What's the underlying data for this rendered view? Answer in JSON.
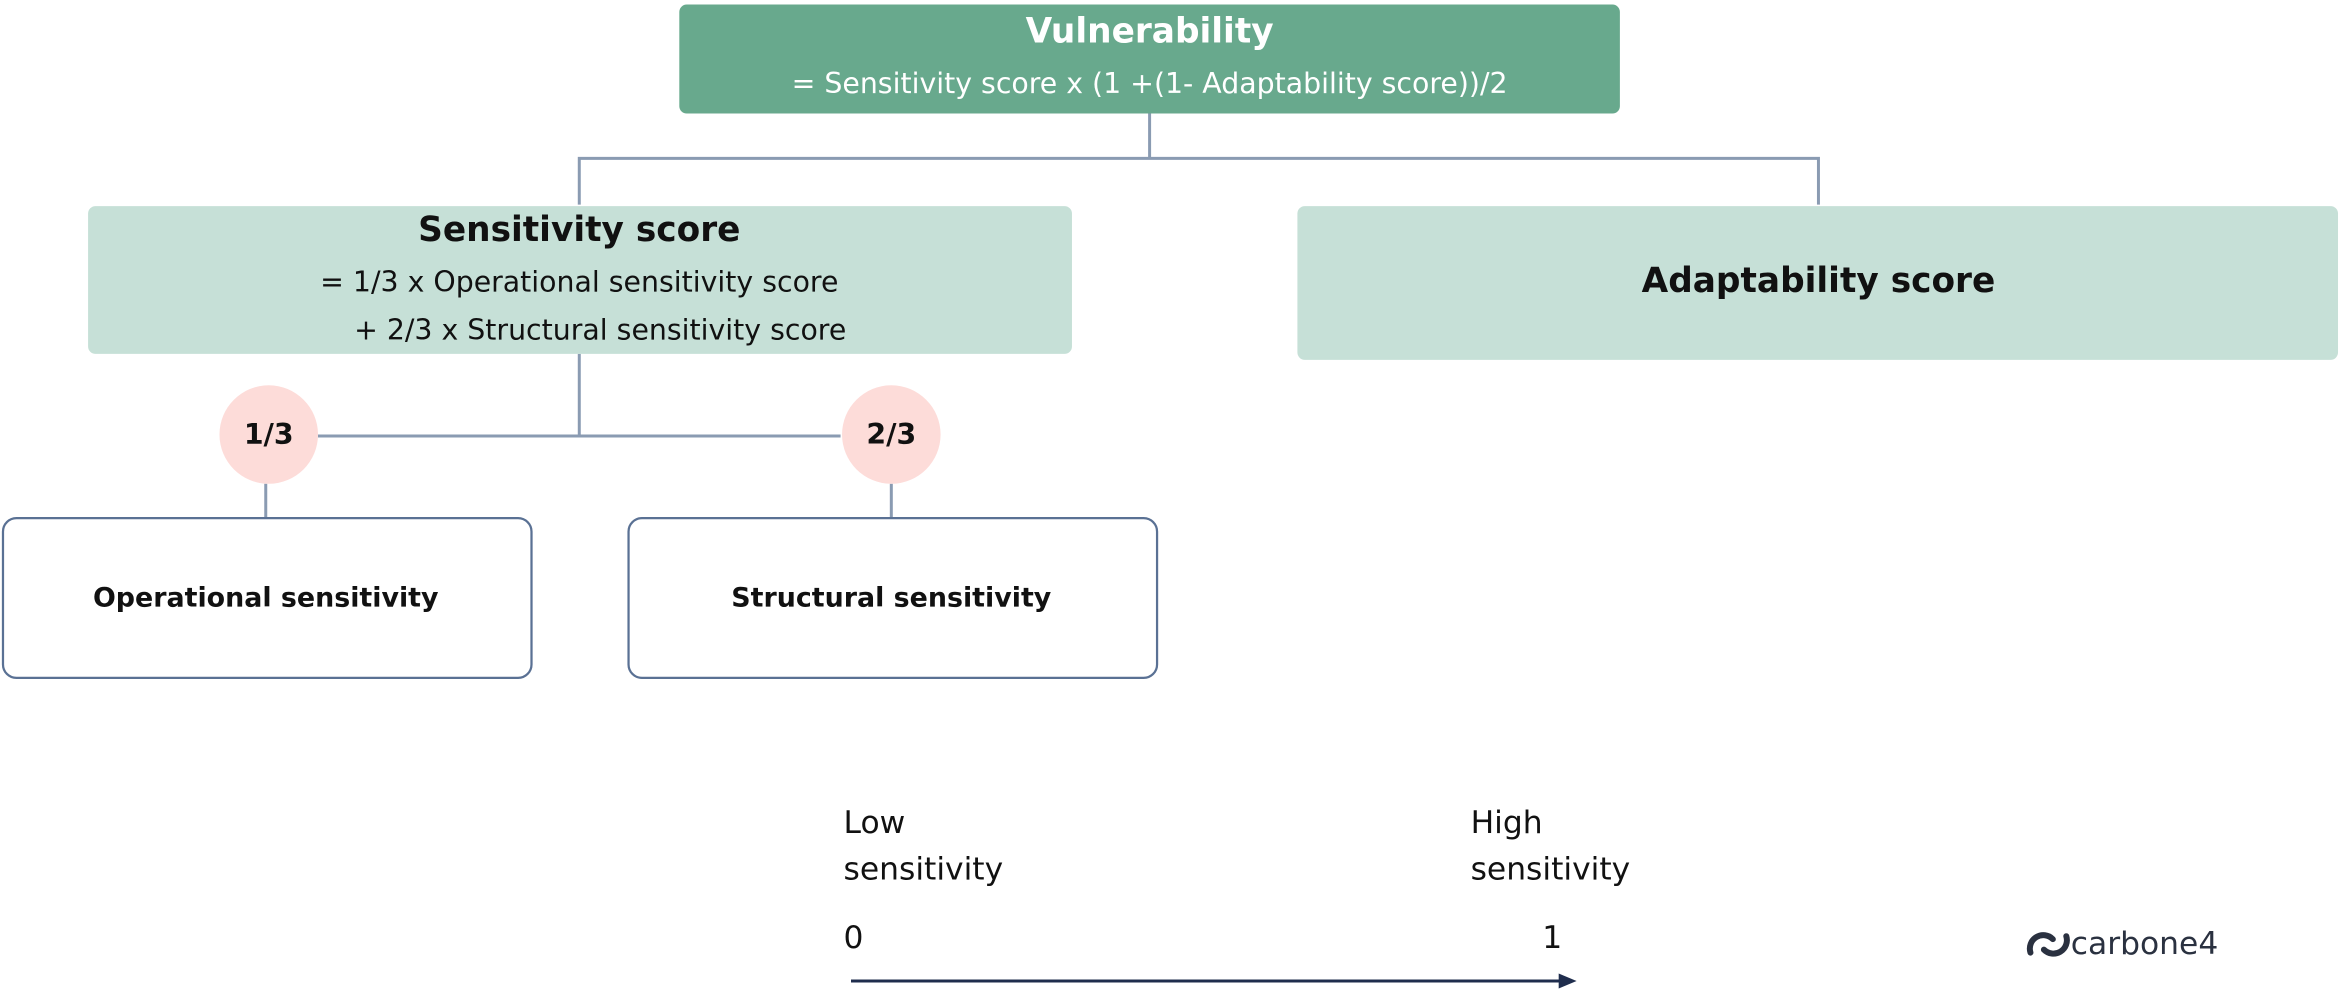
{
  "root": {
    "title": "Vulnerability",
    "formula": "= Sensitivity score x (1 +(1- Adaptability score))/2"
  },
  "sensitivity": {
    "title": "Sensitivity score",
    "formula": [
      "= 1/3 x Operational sensitivity score",
      "+ 2/3 x Structural sensitivity score"
    ]
  },
  "adaptability": {
    "title": "Adaptability score"
  },
  "weights": [
    "1/3",
    "2/3"
  ],
  "leaves": [
    "Operational sensitivity",
    "Structural sensitivity"
  ],
  "scale": {
    "low_label": [
      "Low",
      "sensitivity"
    ],
    "high_label": [
      "High",
      "sensitivity"
    ],
    "min": 0,
    "max": 1
  },
  "logo": "carbone4"
}
